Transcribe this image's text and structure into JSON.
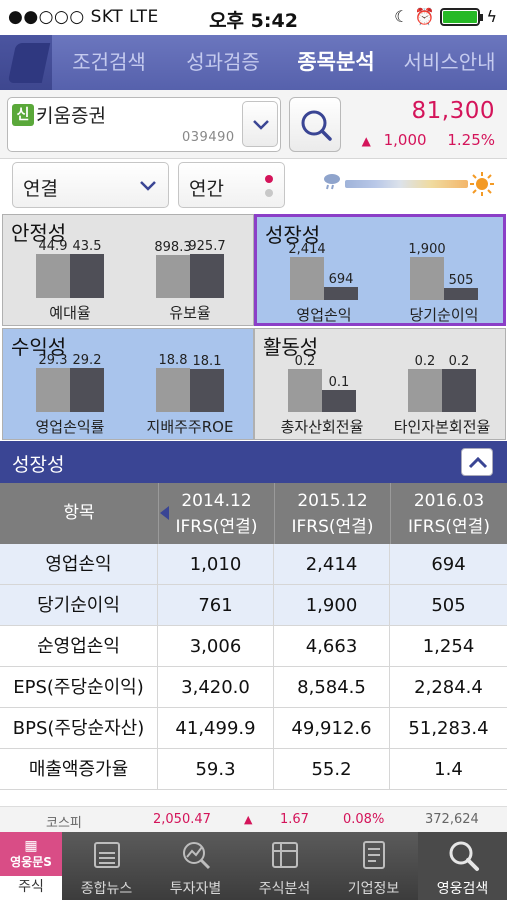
{
  "status_bar": {
    "carrier": "●●○○○ SKT  LTE",
    "time": "오후 5:42"
  },
  "nav": {
    "tabs": [
      "조건검색",
      "성과검증",
      "종목분석",
      "서비스안내"
    ],
    "active": "종목분석"
  },
  "stock": {
    "badge": "신",
    "name": "키움증권",
    "code": "039490",
    "price": "81,300",
    "change_arrow": "▲",
    "change": "1,000",
    "change_pct": "1.25%"
  },
  "filters": {
    "consolidation": "연결",
    "period": "연간"
  },
  "summary": {
    "stability": {
      "title": "안정성",
      "items": [
        {
          "label": "예대율",
          "v1": "44.9",
          "v2": "43.5",
          "f1": 0.88,
          "f2": 0.87
        },
        {
          "label": "유보율",
          "v1": "898.3",
          "v2": "925.7",
          "f1": 0.86,
          "f2": 0.88
        }
      ]
    },
    "growth": {
      "title": "성장성",
      "items": [
        {
          "label": "영업손익",
          "v1": "2,414",
          "v2": "694",
          "f1": 0.86,
          "f2": 0.25
        },
        {
          "label": "당기순이익",
          "v1": "1,900",
          "v2": "505",
          "f1": 0.86,
          "f2": 0.23
        }
      ]
    },
    "profitability": {
      "title": "수익성",
      "items": [
        {
          "label": "영업손익률",
          "v1": "29.3",
          "v2": "29.2",
          "f1": 0.87,
          "f2": 0.87
        },
        {
          "label": "지배주주ROE",
          "v1": "18.8",
          "v2": "18.1",
          "f1": 0.88,
          "f2": 0.86
        }
      ]
    },
    "activity": {
      "title": "활동성",
      "items": [
        {
          "label": "총자산회전율",
          "v1": "0.2",
          "v2": "0.1",
          "f1": 0.86,
          "f2": 0.43
        },
        {
          "label": "타인자본회전율",
          "v1": "0.2",
          "v2": "0.2",
          "f1": 0.86,
          "f2": 0.86
        }
      ]
    }
  },
  "section": {
    "title": "성장성"
  },
  "table": {
    "header_label": "항목",
    "columns": [
      {
        "period": "2014.12",
        "basis": "IFRS(연결)"
      },
      {
        "period": "2015.12",
        "basis": "IFRS(연결)"
      },
      {
        "period": "2016.03",
        "basis": "IFRS(연결)"
      }
    ],
    "rows": [
      {
        "label": "영업손익",
        "values": [
          "1,010",
          "2,414",
          "694"
        ]
      },
      {
        "label": "당기순이익",
        "values": [
          "761",
          "1,900",
          "505"
        ]
      },
      {
        "label": "순영업손익",
        "values": [
          "3,006",
          "4,663",
          "1,254"
        ]
      },
      {
        "label": "EPS(주당순이익)",
        "values": [
          "3,420.0",
          "8,584.5",
          "2,284.4"
        ]
      },
      {
        "label": "BPS(주당순자산)",
        "values": [
          "41,499.9",
          "49,912.6",
          "51,283.4"
        ]
      },
      {
        "label": "매출액증가율",
        "values": [
          "59.3",
          "55.2",
          "1.4"
        ]
      }
    ]
  },
  "ticker": {
    "index": "코스피",
    "value": "2,050.47",
    "arrow": "▲",
    "change": "1.67",
    "pct": "0.08%",
    "volume": "372,624"
  },
  "tabbar": {
    "items": [
      "주식",
      "종합뉴스",
      "투자자별",
      "주식분석",
      "기업정보",
      "영웅검색"
    ],
    "logo_text": "영웅문S",
    "active": "영웅검색"
  },
  "colors": {
    "accent": "#3a4594",
    "up": "#d4145a",
    "highlight": "#a9c4ec",
    "selected_border": "#8b3fc7"
  }
}
